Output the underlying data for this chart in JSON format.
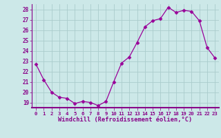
{
  "x": [
    0,
    1,
    2,
    3,
    4,
    5,
    6,
    7,
    8,
    9,
    10,
    11,
    12,
    13,
    14,
    15,
    16,
    17,
    18,
    19,
    20,
    21,
    22,
    23
  ],
  "y": [
    22.7,
    21.2,
    20.0,
    19.5,
    19.4,
    18.9,
    19.1,
    19.0,
    18.7,
    19.1,
    21.0,
    22.8,
    23.4,
    24.8,
    26.3,
    26.9,
    27.1,
    28.2,
    27.7,
    27.9,
    27.8,
    26.9,
    24.3,
    23.3
  ],
  "line_color": "#990099",
  "marker": "D",
  "marker_size": 2.5,
  "bg_color": "#cce8e8",
  "grid_color": "#aacccc",
  "axis_bar_color": "#880088",
  "xlabel": "Windchill (Refroidissement éolien,°C)",
  "tick_color": "#880088",
  "ylim": [
    18.5,
    28.5
  ],
  "yticks": [
    19,
    20,
    21,
    22,
    23,
    24,
    25,
    26,
    27,
    28
  ],
  "xticks": [
    0,
    1,
    2,
    3,
    4,
    5,
    6,
    7,
    8,
    9,
    10,
    11,
    12,
    13,
    14,
    15,
    16,
    17,
    18,
    19,
    20,
    21,
    22,
    23
  ],
  "xtick_labels": [
    "0",
    "1",
    "2",
    "3",
    "4",
    "5",
    "6",
    "7",
    "8",
    "9",
    "10",
    "11",
    "12",
    "13",
    "14",
    "15",
    "16",
    "17",
    "18",
    "19",
    "20",
    "21",
    "22",
    "23"
  ]
}
